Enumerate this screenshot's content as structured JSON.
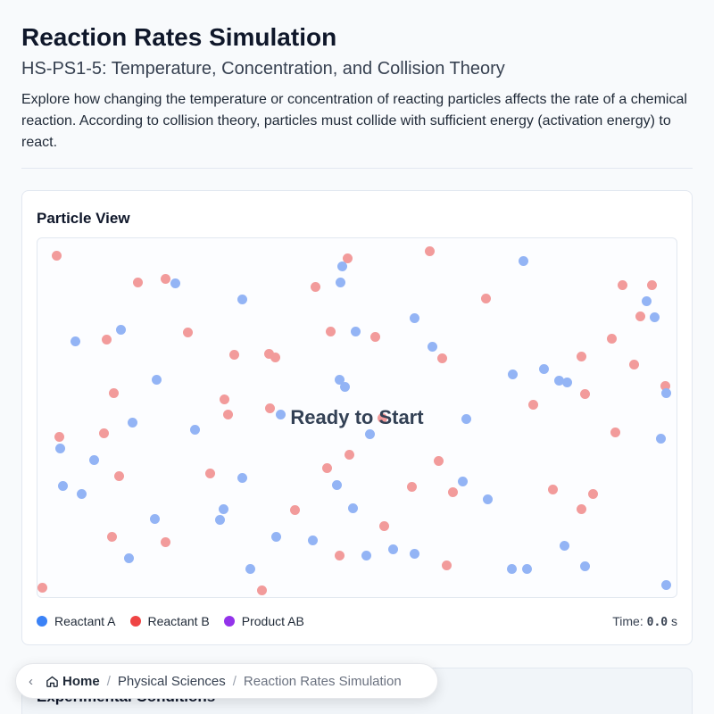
{
  "header": {
    "title": "Reaction Rates Simulation",
    "subtitle": "HS-PS1-5: Temperature, Concentration, and Collision Theory",
    "description": "Explore how changing the temperature or concentration of reacting particles affects the rate of a chemical reaction. According to collision theory, particles must collide with sufficient energy (activation energy) to react."
  },
  "particle_view": {
    "title": "Particle View",
    "status": "Ready to Start",
    "legend": [
      {
        "label": "Reactant A",
        "color": "#3b82f6"
      },
      {
        "label": "Reactant B",
        "color": "#ef4444"
      },
      {
        "label": "Product AB",
        "color": "#9333ea"
      }
    ],
    "time_label": "Time:",
    "time_value": "0.0",
    "time_unit": "s",
    "particle_colors": {
      "A": "#93b4f5",
      "B": "#f29b9b"
    }
  },
  "conditions": {
    "title": "Experimental Conditions"
  },
  "breadcrumb": {
    "back_icon": "chevron-left-icon",
    "home_icon": "home-icon",
    "items": [
      "Home",
      "Physical Sciences",
      "Reaction Rates Simulation"
    ]
  }
}
